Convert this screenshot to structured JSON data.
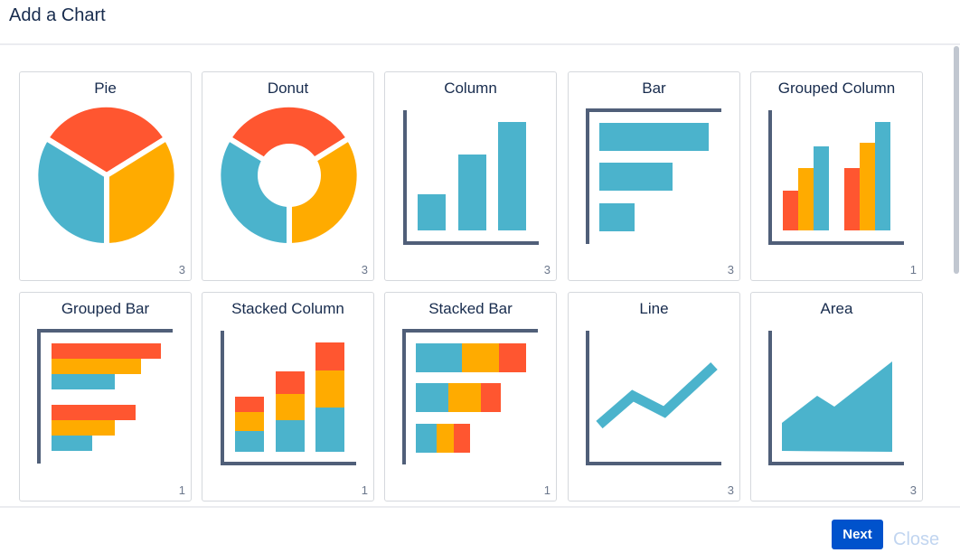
{
  "dialog": {
    "title": "Add a Chart"
  },
  "colors": {
    "red": "#ff5630",
    "orange": "#ffab00",
    "teal": "#4bb3cc",
    "axis": "#505f79"
  },
  "charts": [
    {
      "label": "Pie",
      "count": "3",
      "icon": "pie-chart-icon"
    },
    {
      "label": "Donut",
      "count": "3",
      "icon": "donut-chart-icon"
    },
    {
      "label": "Column",
      "count": "3",
      "icon": "column-chart-icon"
    },
    {
      "label": "Bar",
      "count": "3",
      "icon": "bar-chart-icon"
    },
    {
      "label": "Grouped Column",
      "count": "1",
      "icon": "grouped-column-chart-icon"
    },
    {
      "label": "Grouped Bar",
      "count": "1",
      "icon": "grouped-bar-chart-icon"
    },
    {
      "label": "Stacked Column",
      "count": "1",
      "icon": "stacked-column-chart-icon"
    },
    {
      "label": "Stacked Bar",
      "count": "1",
      "icon": "stacked-bar-chart-icon"
    },
    {
      "label": "Line",
      "count": "3",
      "icon": "line-chart-icon"
    },
    {
      "label": "Area",
      "count": "3",
      "icon": "area-chart-icon"
    }
  ],
  "footer": {
    "next_label": "Next",
    "close_label": "Close"
  }
}
